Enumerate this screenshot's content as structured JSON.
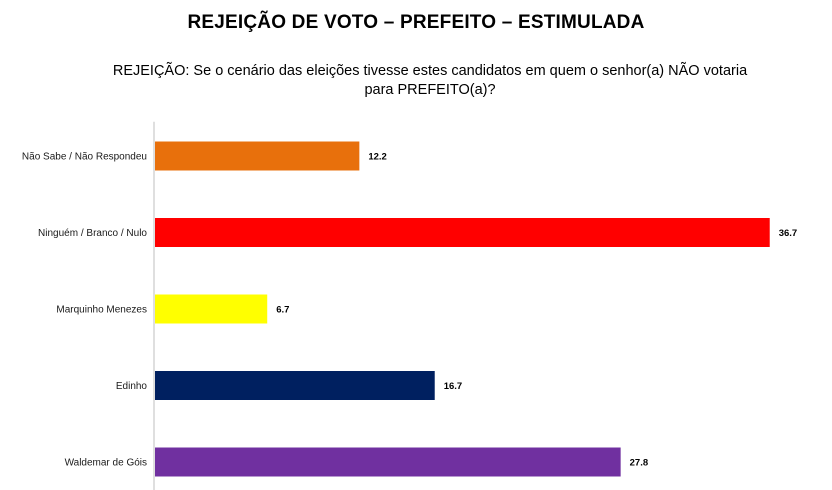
{
  "page": {
    "title": "REJEIÇÃO DE VOTO – PREFEITO – ESTIMULADA",
    "subtitle": "REJEIÇÃO: Se o cenário das eleições tivesse estes candidatos em quem o senhor(a) NÃO votaria para PREFEITO(a)?"
  },
  "chart_data": {
    "type": "bar",
    "orientation": "horizontal",
    "title": "REJEIÇÃO DE VOTO – PREFEITO – ESTIMULADA",
    "subtitle": "REJEIÇÃO: Se o cenário das eleições tivesse estes candidatos em quem o senhor(a) NÃO votaria para PREFEITO(a)?",
    "xlabel": "",
    "ylabel": "",
    "xlim": [
      0,
      40
    ],
    "grid": false,
    "legend": "none",
    "categories": [
      "Não Sabe / Não Respondeu",
      "Ninguém / Branco / Nulo",
      "Marquinho Menezes",
      "Edinho",
      "Waldemar de Góis"
    ],
    "values": [
      12.2,
      36.7,
      6.7,
      16.7,
      27.8
    ],
    "value_labels": [
      "12.2",
      "36.7",
      "6.7",
      "16.7",
      "27.8"
    ],
    "colors": [
      "#E8700C",
      "#FF0000",
      "#FFFF00",
      "#002060",
      "#7030A0"
    ]
  }
}
